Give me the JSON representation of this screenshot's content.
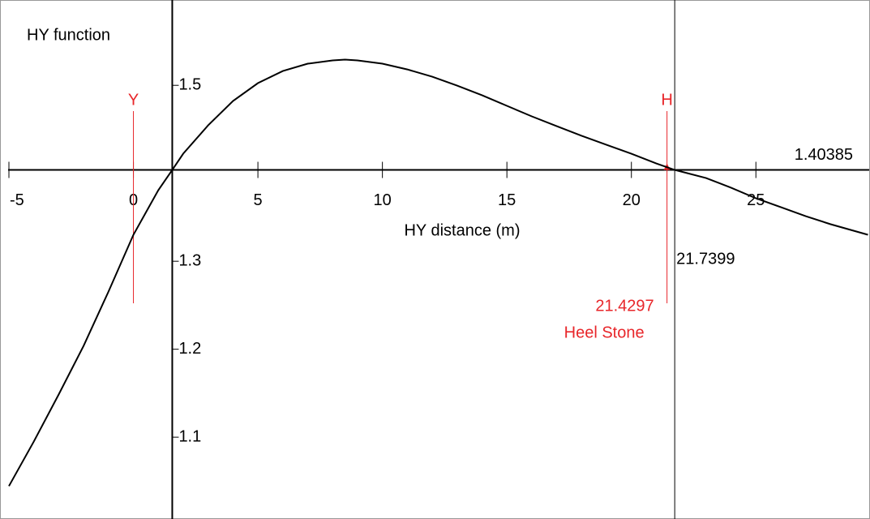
{
  "chart_data": {
    "type": "line",
    "title": "HY function",
    "x_label": "HY distance (m)",
    "x": [
      -5,
      -4,
      -3,
      -2,
      -1,
      0,
      1,
      1.56,
      2,
      3,
      4,
      5,
      6,
      7,
      8,
      8.5,
      9,
      10,
      11,
      12,
      13,
      14,
      15,
      16,
      17,
      18,
      19,
      20,
      21,
      21.74,
      23,
      24,
      25,
      26,
      27,
      28,
      29.5
    ],
    "series": [
      {
        "color": "#000000",
        "values": [
          1.0444,
          1.0951,
          1.1486,
          1.2039,
          1.2656,
          1.3301,
          1.3808,
          1.40385,
          1.4223,
          1.4545,
          1.4822,
          1.5025,
          1.5163,
          1.5246,
          1.5283,
          1.5292,
          1.5283,
          1.5246,
          1.5181,
          1.5098,
          1.4997,
          1.4887,
          1.4767,
          1.4647,
          1.4536,
          1.4426,
          1.4324,
          1.4223,
          1.4112,
          1.40385,
          1.3946,
          1.3836,
          1.3716,
          1.3615,
          1.3513,
          1.3421,
          1.3301
        ]
      }
    ],
    "xlim": [
      -5,
      29.55
    ],
    "ylim": [
      1.007,
      1.597
    ],
    "xticks": [
      -5,
      0,
      5,
      10,
      15,
      20,
      25
    ],
    "yticks": [
      1.1,
      1.2,
      1.3,
      1.5
    ],
    "x_axis_at": 1.40385,
    "y_axis_at": 1.56,
    "root_line": 21.7399,
    "markers": [
      {
        "label": "Y",
        "x": 0,
        "color": "#e8262a"
      },
      {
        "label": "H",
        "x": 21.4297,
        "value_label": "21.4297",
        "note": "Heel Stone",
        "color": "#e8262a"
      }
    ]
  }
}
